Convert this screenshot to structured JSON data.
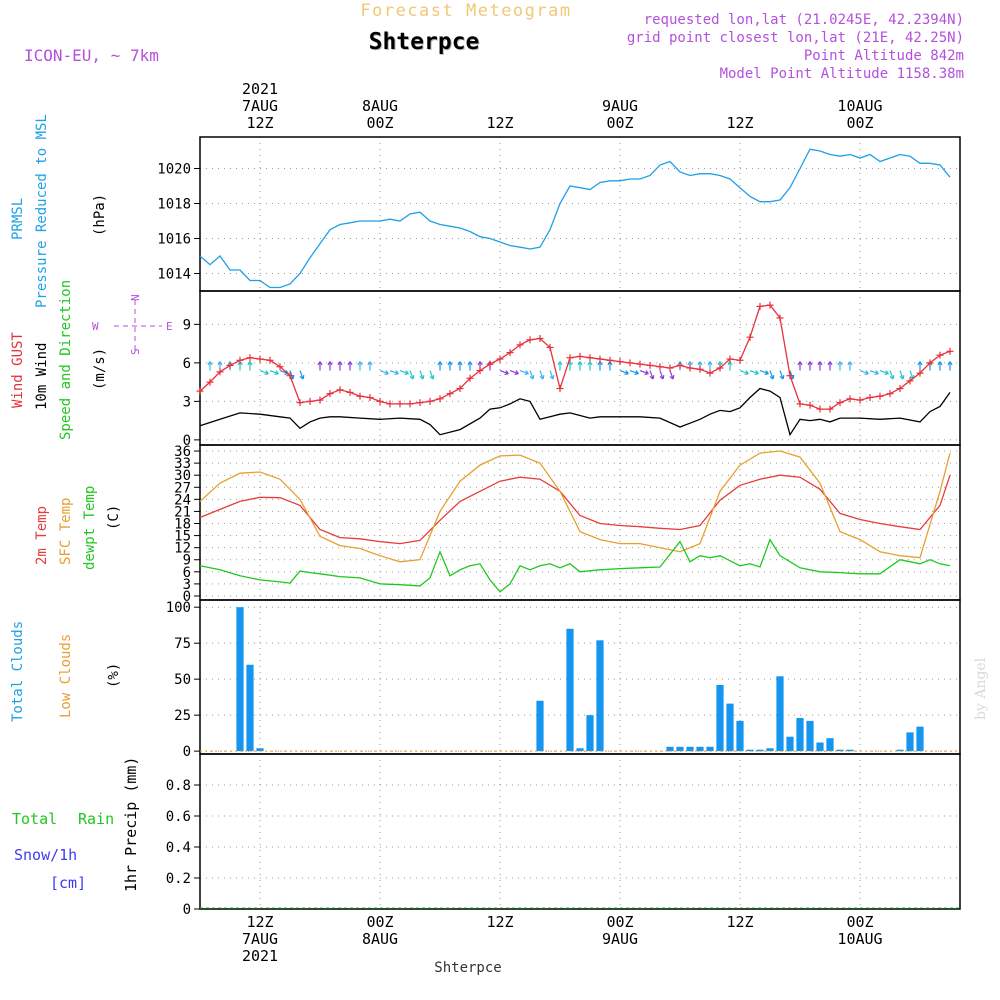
{
  "header": {
    "title": "Forecast Meteogram",
    "station": "Shterpce",
    "model": "ICON-EU, ~ 7km",
    "requested": "requested lon,lat (21.0245E, 42.2394N)",
    "grid_point": "grid point closest lon,lat (21E, 42.25N)",
    "point_altitude": "Point Altitude 842m",
    "model_altitude": "Model Point Altitude 1158.38m",
    "watermark": "by Angel",
    "footer_station": "Shterpce"
  },
  "time_axis": {
    "top_labels": [
      {
        "x": 6,
        "lines": [
          "2021",
          "7AUG",
          "12Z"
        ]
      },
      {
        "x": 18,
        "lines": [
          "8AUG",
          "00Z"
        ]
      },
      {
        "x": 30,
        "lines": [
          "12Z"
        ]
      },
      {
        "x": 42,
        "lines": [
          "9AUG",
          "00Z"
        ]
      },
      {
        "x": 54,
        "lines": [
          "12Z"
        ]
      },
      {
        "x": 66,
        "lines": [
          "10AUG",
          "00Z"
        ]
      }
    ],
    "bottom_labels": [
      {
        "x": 6,
        "lines": [
          "12Z",
          "7AUG",
          "2021"
        ]
      },
      {
        "x": 18,
        "lines": [
          "00Z",
          "8AUG"
        ]
      },
      {
        "x": 30,
        "lines": [
          "12Z"
        ]
      },
      {
        "x": 42,
        "lines": [
          "00Z",
          "9AUG"
        ]
      },
      {
        "x": 54,
        "lines": [
          "12Z"
        ]
      },
      {
        "x": 66,
        "lines": [
          "00Z",
          "10AUG"
        ]
      }
    ]
  },
  "panels": {
    "pressure": {
      "labels": [
        "PRMSL",
        "Pressure Reduced to MSL"
      ],
      "unit": "(hPa)"
    },
    "wind": {
      "labels": [
        "Wind GUST",
        "10m Wind",
        "Speed and Direction"
      ],
      "unit": "(m/s)",
      "compass": {
        "n": "N",
        "s": "S",
        "w": "W",
        "e": "E"
      }
    },
    "temp": {
      "labels": [
        "2m Temp",
        "SFC Temp",
        "dewpt Temp"
      ],
      "unit": "(C)"
    },
    "clouds": {
      "labels": [
        "Total Clouds",
        "Low Clouds"
      ],
      "unit": "(%)"
    },
    "precip": {
      "labels": [
        "Total",
        "Rain",
        "Snow/1h",
        "[cm]"
      ],
      "unit": "1hr Precip (mm)"
    }
  },
  "colors": {
    "pressure": "#1ea0e6",
    "gust": "#e6323c",
    "wind": "#000000",
    "temp2m": "#e63c3c",
    "sfc": "#e6a032",
    "dewpt": "#1ec81e",
    "clouds": "#1496f0",
    "title": "#f0c878",
    "info": "#b450dc",
    "rain": "#1ec81e",
    "snow": "#3c3cf0"
  },
  "chart_data": [
    {
      "type": "line",
      "name": "pressure",
      "x_range": [
        0,
        76
      ],
      "ylim": [
        1013,
        1021.8
      ],
      "yticks": [
        1014,
        1016,
        1018,
        1020
      ],
      "series": [
        {
          "name": "PRMSL",
          "x": [
            0,
            1,
            2,
            3,
            4,
            5,
            6,
            7,
            8,
            9,
            10,
            11,
            12,
            13,
            14,
            15,
            16,
            17,
            18,
            19,
            20,
            21,
            22,
            23,
            24,
            25,
            26,
            27,
            28,
            29,
            30,
            31,
            32,
            33,
            34,
            35,
            36,
            37,
            38,
            39,
            40,
            41,
            42,
            43,
            44,
            45,
            46,
            47,
            48,
            49,
            50,
            51,
            52,
            53,
            54,
            55,
            56,
            57,
            58,
            59,
            60,
            61,
            62,
            63,
            64,
            65,
            66,
            67,
            68,
            69,
            70,
            71,
            72,
            73,
            74,
            75
          ],
          "values": [
            1015.0,
            1014.5,
            1015.0,
            1014.2,
            1014.2,
            1013.6,
            1013.6,
            1013.2,
            1013.2,
            1013.4,
            1014.0,
            1014.9,
            1015.7,
            1016.5,
            1016.8,
            1016.9,
            1017.0,
            1017.0,
            1017.0,
            1017.1,
            1017.0,
            1017.4,
            1017.5,
            1017.0,
            1016.8,
            1016.7,
            1016.6,
            1016.4,
            1016.1,
            1016.0,
            1015.8,
            1015.6,
            1015.5,
            1015.4,
            1015.5,
            1016.5,
            1018.0,
            1019.0,
            1018.9,
            1018.8,
            1019.2,
            1019.3,
            1019.3,
            1019.4,
            1019.4,
            1019.6,
            1020.2,
            1020.4,
            1019.8,
            1019.6,
            1019.7,
            1019.7,
            1019.6,
            1019.4,
            1018.9,
            1018.4,
            1018.1,
            1018.1,
            1018.2,
            1018.9,
            1020.0,
            1021.1,
            1021.0,
            1020.8,
            1020.7,
            1020.8,
            1020.6,
            1020.8,
            1020.4,
            1020.6,
            1020.8,
            1020.7,
            1020.3,
            1020.3,
            1020.2,
            1019.5
          ]
        }
      ]
    },
    {
      "type": "line",
      "name": "wind",
      "x_range": [
        0,
        76
      ],
      "ylim": [
        -0.4,
        11.6
      ],
      "yticks": [
        0,
        3,
        6,
        9
      ],
      "series": [
        {
          "name": "Wind GUST",
          "x": [
            0,
            1,
            2,
            3,
            4,
            5,
            6,
            7,
            8,
            9,
            10,
            11,
            12,
            13,
            14,
            15,
            16,
            17,
            18,
            19,
            20,
            21,
            22,
            23,
            24,
            25,
            26,
            27,
            28,
            29,
            30,
            31,
            32,
            33,
            34,
            35,
            36,
            37,
            38,
            39,
            40,
            41,
            42,
            43,
            44,
            45,
            46,
            47,
            48,
            49,
            50,
            51,
            52,
            53,
            54,
            55,
            56,
            57,
            58,
            59,
            60,
            61,
            62,
            63,
            64,
            65,
            66,
            67,
            68,
            69,
            70,
            71,
            72,
            73,
            74,
            75
          ],
          "values": [
            3.8,
            4.5,
            5.3,
            5.8,
            6.2,
            6.4,
            6.3,
            6.2,
            5.7,
            5.0,
            2.9,
            3.0,
            3.1,
            3.6,
            3.9,
            3.7,
            3.4,
            3.3,
            3.0,
            2.8,
            2.8,
            2.8,
            2.9,
            3.0,
            3.2,
            3.6,
            4.0,
            4.8,
            5.4,
            5.9,
            6.3,
            6.8,
            7.4,
            7.8,
            7.9,
            7.2,
            4.0,
            6.4,
            6.5,
            6.4,
            6.3,
            6.2,
            6.1,
            6.0,
            5.9,
            5.8,
            5.7,
            5.6,
            5.8,
            5.6,
            5.5,
            5.2,
            5.6,
            6.3,
            6.2,
            8.0,
            10.4,
            10.5,
            9.5,
            5.0,
            2.8,
            2.7,
            2.4,
            2.4,
            2.9,
            3.2,
            3.1,
            3.3,
            3.4,
            3.6,
            4.0,
            4.6,
            5.2,
            6.0,
            6.6,
            6.9
          ]
        },
        {
          "name": "10m Wind",
          "x": [
            0,
            2,
            4,
            6,
            8,
            9,
            10,
            11,
            12,
            13,
            14,
            16,
            18,
            20,
            22,
            23,
            24,
            26,
            28,
            29,
            30,
            31,
            32,
            33,
            34,
            35,
            36,
            37,
            38,
            39,
            40,
            42,
            44,
            46,
            48,
            49,
            50,
            51,
            52,
            53,
            54,
            55,
            56,
            57,
            58,
            59,
            60,
            61,
            62,
            63,
            64,
            66,
            68,
            70,
            72,
            73,
            74,
            75
          ],
          "values": [
            1.1,
            1.6,
            2.1,
            2.0,
            1.8,
            1.7,
            0.9,
            1.4,
            1.7,
            1.8,
            1.8,
            1.7,
            1.6,
            1.7,
            1.6,
            1.2,
            0.4,
            0.8,
            1.7,
            2.4,
            2.5,
            2.8,
            3.2,
            3.0,
            1.6,
            1.8,
            2.0,
            2.1,
            1.9,
            1.7,
            1.8,
            1.8,
            1.8,
            1.7,
            1.0,
            1.3,
            1.6,
            2.0,
            2.3,
            2.2,
            2.5,
            3.3,
            4.0,
            3.8,
            3.3,
            0.4,
            1.6,
            1.5,
            1.6,
            1.4,
            1.7,
            1.7,
            1.6,
            1.7,
            1.4,
            2.2,
            2.6,
            3.7
          ]
        }
      ]
    },
    {
      "type": "line",
      "name": "temperature",
      "x_range": [
        0,
        76
      ],
      "ylim": [
        -1,
        37.5
      ],
      "yticks": [
        0,
        3,
        6,
        9,
        12,
        15,
        18,
        21,
        24,
        27,
        30,
        33,
        36
      ],
      "series": [
        {
          "name": "2m Temp",
          "x": [
            0,
            2,
            4,
            6,
            8,
            10,
            12,
            14,
            16,
            18,
            20,
            22,
            24,
            26,
            28,
            30,
            32,
            34,
            36,
            38,
            40,
            42,
            44,
            46,
            48,
            50,
            52,
            54,
            56,
            58,
            60,
            62,
            64,
            66,
            68,
            70,
            72,
            74,
            75
          ],
          "values": [
            19.5,
            21.5,
            23.5,
            24.5,
            24.4,
            22.5,
            16.5,
            14.5,
            14.2,
            13.5,
            13.0,
            13.8,
            18.8,
            23.5,
            26.0,
            28.5,
            29.5,
            29.0,
            26.0,
            20.0,
            18.0,
            17.5,
            17.2,
            16.8,
            16.5,
            17.5,
            23.8,
            27.5,
            29.0,
            30.0,
            29.5,
            26.5,
            20.5,
            19.0,
            18.0,
            17.2,
            16.5,
            22.5,
            30.0
          ]
        },
        {
          "name": "SFC Temp",
          "x": [
            0,
            2,
            4,
            6,
            8,
            10,
            12,
            14,
            16,
            18,
            20,
            22,
            24,
            26,
            28,
            30,
            32,
            34,
            36,
            38,
            40,
            42,
            44,
            46,
            48,
            50,
            52,
            54,
            56,
            58,
            60,
            62,
            64,
            66,
            68,
            70,
            72,
            74,
            75
          ],
          "values": [
            23.5,
            28.0,
            30.5,
            30.8,
            29.0,
            24.0,
            14.8,
            12.5,
            11.8,
            10.0,
            8.5,
            9.0,
            21.0,
            28.5,
            32.5,
            34.8,
            35.0,
            33.0,
            26.0,
            16.0,
            14.0,
            13.0,
            13.0,
            12.0,
            11.0,
            13.0,
            26.0,
            32.5,
            35.5,
            36.0,
            34.5,
            28.0,
            16.0,
            14.0,
            11.0,
            10.0,
            9.5,
            26.0,
            35.5
          ]
        },
        {
          "name": "dewpt Temp",
          "x": [
            0,
            2,
            4,
            6,
            8,
            9,
            10,
            11,
            12,
            14,
            16,
            18,
            20,
            22,
            23,
            24,
            25,
            26,
            27,
            28,
            29,
            30,
            31,
            32,
            33,
            34,
            35,
            36,
            37,
            38,
            40,
            42,
            44,
            46,
            48,
            49,
            50,
            51,
            52,
            54,
            55,
            56,
            57,
            58,
            60,
            62,
            64,
            66,
            68,
            70,
            72,
            73,
            74,
            75
          ],
          "values": [
            7.5,
            6.5,
            5.0,
            4.0,
            3.5,
            3.2,
            6.2,
            5.8,
            5.5,
            4.8,
            4.5,
            3.0,
            2.8,
            2.5,
            4.5,
            11.0,
            5.0,
            6.5,
            7.5,
            8.0,
            4.0,
            1.0,
            3.0,
            7.5,
            6.5,
            7.5,
            8.0,
            7.0,
            8.0,
            6.0,
            6.5,
            6.8,
            7.0,
            7.2,
            13.5,
            8.5,
            10.0,
            9.5,
            10.0,
            7.5,
            8.0,
            7.2,
            14.0,
            10.0,
            7.0,
            6.0,
            5.8,
            5.5,
            5.5,
            9.0,
            8.0,
            9.0,
            8.0,
            7.5
          ]
        }
      ]
    },
    {
      "type": "bar",
      "name": "clouds",
      "x_range": [
        0,
        76
      ],
      "ylim": [
        -2,
        105
      ],
      "yticks": [
        0,
        25,
        50,
        75,
        100
      ],
      "series": [
        {
          "name": "Total Clouds",
          "x": [
            4,
            5,
            6,
            34,
            37,
            38,
            39,
            40,
            47,
            48,
            49,
            50,
            51,
            52,
            53,
            54,
            55,
            56,
            57,
            58,
            59,
            60,
            61,
            62,
            63,
            64,
            65,
            70,
            71,
            72
          ],
          "values": [
            100,
            60,
            2,
            35,
            85,
            2,
            25,
            77,
            3,
            3,
            3,
            3,
            3,
            46,
            33,
            21,
            1,
            1,
            2,
            52,
            10,
            23,
            21,
            6,
            9,
            1,
            1,
            1,
            13,
            17
          ]
        }
      ]
    },
    {
      "type": "bar",
      "name": "precipitation",
      "x_range": [
        0,
        76
      ],
      "ylim": [
        0,
        1.0
      ],
      "yticks": [
        0,
        0.2,
        0.4,
        0.6,
        0.8
      ],
      "series": [
        {
          "name": "Total Rain",
          "x": [],
          "values": []
        }
      ]
    }
  ]
}
